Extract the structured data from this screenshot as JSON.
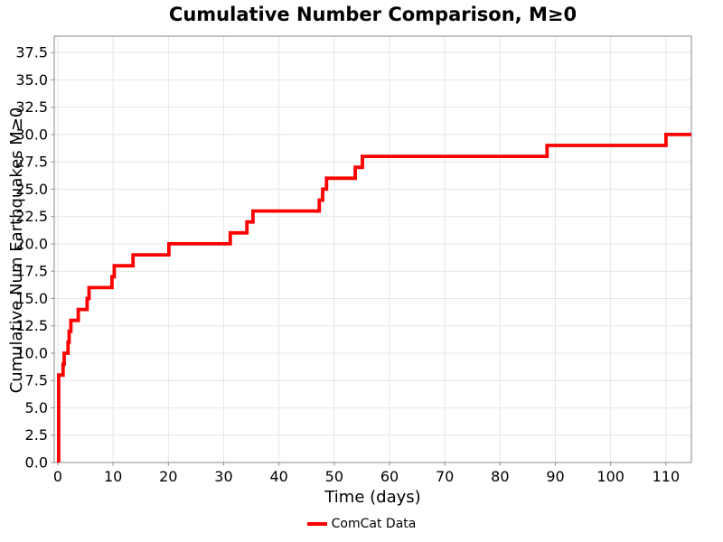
{
  "title": "Cumulative Number Comparison, M≥0",
  "chart_data": {
    "type": "line",
    "subtype": "step-post",
    "title": "Cumulative Number Comparison, M≥0",
    "xlabel": "Time (days)",
    "ylabel": "Cumulative Num Earthquakes M≥0",
    "xlim": [
      -0.65,
      114.6
    ],
    "ylim": [
      0,
      39
    ],
    "xticks": [
      0,
      10,
      20,
      30,
      40,
      50,
      60,
      70,
      80,
      90,
      100,
      110
    ],
    "yticks": [
      0.0,
      2.5,
      5.0,
      7.5,
      10.0,
      12.5,
      15.0,
      17.5,
      20.0,
      22.5,
      25.0,
      27.5,
      30.0,
      32.5,
      35.0,
      37.5
    ],
    "grid": true,
    "grid_color": "#e6e6e6",
    "spine_color": "#888888",
    "tick_color": "#888888",
    "background_color": "#ffffff",
    "legend": {
      "position": "bottom-center",
      "entries": [
        {
          "label": "ComCat Data",
          "color": "#ff0000"
        }
      ]
    },
    "series": [
      {
        "name": "ComCat Data",
        "color": "#ff0000",
        "linewidth": 3.8,
        "step": "post",
        "start": [
          0.15,
          0
        ],
        "jumps": [
          [
            0.15,
            8
          ],
          [
            0.95,
            9
          ],
          [
            1.15,
            10
          ],
          [
            1.85,
            11
          ],
          [
            2.05,
            12
          ],
          [
            2.35,
            13
          ],
          [
            3.7,
            14
          ],
          [
            5.3,
            15
          ],
          [
            5.65,
            16
          ],
          [
            9.8,
            17
          ],
          [
            10.2,
            18
          ],
          [
            13.6,
            19
          ],
          [
            20.1,
            20
          ],
          [
            31.2,
            21
          ],
          [
            34.2,
            22
          ],
          [
            35.3,
            23
          ],
          [
            47.3,
            24
          ],
          [
            47.9,
            25
          ],
          [
            48.6,
            26
          ],
          [
            53.8,
            27
          ],
          [
            55.1,
            28
          ],
          [
            88.5,
            29
          ],
          [
            110.0,
            30
          ]
        ],
        "end_time": 114.6,
        "final_value": 30
      }
    ]
  }
}
